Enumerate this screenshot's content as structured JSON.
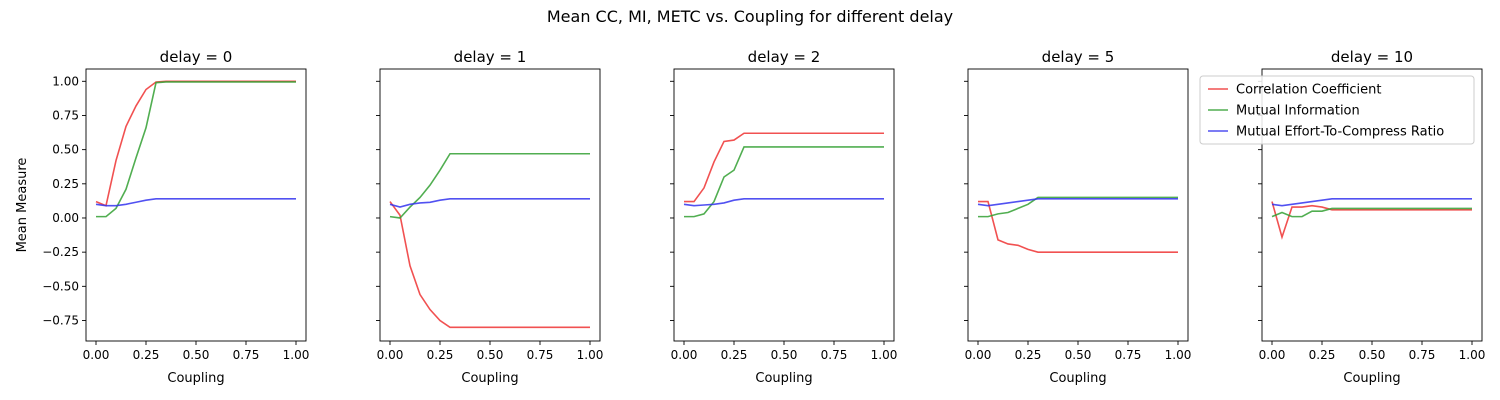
{
  "chart_data": {
    "type": "line",
    "suptitle": "Mean CC, MI, METC vs. Coupling for different delay",
    "xlabel": "Coupling",
    "ylabel": "Mean Measure",
    "xlim": [
      -0.05,
      1.05
    ],
    "ylim": [
      -0.9,
      1.09
    ],
    "xticks": [
      0.0,
      0.25,
      0.5,
      0.75,
      1.0
    ],
    "xtick_labels": [
      "0.00",
      "0.25",
      "0.50",
      "0.75",
      "1.00"
    ],
    "yticks": [
      -0.75,
      -0.5,
      -0.25,
      0.0,
      0.25,
      0.5,
      0.75,
      1.0
    ],
    "ytick_labels": [
      "−0.75",
      "−0.50",
      "−0.25",
      "0.00",
      "0.25",
      "0.50",
      "0.75",
      "1.00"
    ],
    "grid": false,
    "legend_placement": "upper-right of last panel, overlapping",
    "x": [
      0.0,
      0.05,
      0.1,
      0.15,
      0.2,
      0.25,
      0.3,
      0.35,
      0.4,
      0.45,
      0.5,
      0.55,
      0.6,
      0.65,
      0.7,
      0.75,
      0.8,
      0.85,
      0.9,
      0.95,
      1.0
    ],
    "series_styles": [
      {
        "name": "Correlation Coefficient",
        "color": "#ee3333"
      },
      {
        "name": "Mutual Information",
        "color": "#33a033"
      },
      {
        "name": "Mutual Effort-To-Compress Ratio",
        "color": "#3333ee"
      }
    ],
    "panels": [
      {
        "title": "delay = 0",
        "series": [
          {
            "name": "Correlation Coefficient",
            "values": [
              0.12,
              0.09,
              0.42,
              0.67,
              0.82,
              0.94,
              0.995,
              1.0,
              1.0,
              1.0,
              1.0,
              1.0,
              1.0,
              1.0,
              1.0,
              1.0,
              1.0,
              1.0,
              1.0,
              1.0,
              1.0
            ]
          },
          {
            "name": "Mutual Information",
            "values": [
              0.01,
              0.01,
              0.07,
              0.21,
              0.44,
              0.66,
              0.99,
              0.995,
              0.995,
              0.995,
              0.995,
              0.995,
              0.995,
              0.995,
              0.995,
              0.995,
              0.995,
              0.995,
              0.995,
              0.995,
              0.995
            ]
          },
          {
            "name": "Mutual Effort-To-Compress Ratio",
            "values": [
              0.1,
              0.09,
              0.09,
              0.1,
              0.115,
              0.13,
              0.14,
              0.14,
              0.14,
              0.14,
              0.14,
              0.14,
              0.14,
              0.14,
              0.14,
              0.14,
              0.14,
              0.14,
              0.14,
              0.14,
              0.14
            ]
          }
        ]
      },
      {
        "title": "delay = 1",
        "series": [
          {
            "name": "Correlation Coefficient",
            "values": [
              0.12,
              0.02,
              -0.35,
              -0.56,
              -0.67,
              -0.75,
              -0.8,
              -0.8,
              -0.8,
              -0.8,
              -0.8,
              -0.8,
              -0.8,
              -0.8,
              -0.8,
              -0.8,
              -0.8,
              -0.8,
              -0.8,
              -0.8,
              -0.8
            ]
          },
          {
            "name": "Mutual Information",
            "values": [
              0.01,
              0.0,
              0.08,
              0.15,
              0.24,
              0.35,
              0.47,
              0.47,
              0.47,
              0.47,
              0.47,
              0.47,
              0.47,
              0.47,
              0.47,
              0.47,
              0.47,
              0.47,
              0.47,
              0.47,
              0.47
            ]
          },
          {
            "name": "Mutual Effort-To-Compress Ratio",
            "values": [
              0.1,
              0.08,
              0.1,
              0.11,
              0.115,
              0.13,
              0.14,
              0.14,
              0.14,
              0.14,
              0.14,
              0.14,
              0.14,
              0.14,
              0.14,
              0.14,
              0.14,
              0.14,
              0.14,
              0.14,
              0.14
            ]
          }
        ]
      },
      {
        "title": "delay = 2",
        "series": [
          {
            "name": "Correlation Coefficient",
            "values": [
              0.12,
              0.12,
              0.22,
              0.41,
              0.56,
              0.57,
              0.62,
              0.62,
              0.62,
              0.62,
              0.62,
              0.62,
              0.62,
              0.62,
              0.62,
              0.62,
              0.62,
              0.62,
              0.62,
              0.62,
              0.62
            ]
          },
          {
            "name": "Mutual Information",
            "values": [
              0.01,
              0.01,
              0.03,
              0.12,
              0.3,
              0.35,
              0.52,
              0.52,
              0.52,
              0.52,
              0.52,
              0.52,
              0.52,
              0.52,
              0.52,
              0.52,
              0.52,
              0.52,
              0.52,
              0.52,
              0.52
            ]
          },
          {
            "name": "Mutual Effort-To-Compress Ratio",
            "values": [
              0.1,
              0.09,
              0.095,
              0.1,
              0.11,
              0.13,
              0.14,
              0.14,
              0.14,
              0.14,
              0.14,
              0.14,
              0.14,
              0.14,
              0.14,
              0.14,
              0.14,
              0.14,
              0.14,
              0.14,
              0.14
            ]
          }
        ]
      },
      {
        "title": "delay = 5",
        "series": [
          {
            "name": "Correlation Coefficient",
            "values": [
              0.12,
              0.12,
              -0.16,
              -0.19,
              -0.2,
              -0.23,
              -0.25,
              -0.25,
              -0.25,
              -0.25,
              -0.25,
              -0.25,
              -0.25,
              -0.25,
              -0.25,
              -0.25,
              -0.25,
              -0.25,
              -0.25,
              -0.25,
              -0.25
            ]
          },
          {
            "name": "Mutual Information",
            "values": [
              0.01,
              0.01,
              0.03,
              0.04,
              0.07,
              0.1,
              0.15,
              0.15,
              0.15,
              0.15,
              0.15,
              0.15,
              0.15,
              0.15,
              0.15,
              0.15,
              0.15,
              0.15,
              0.15,
              0.15,
              0.15
            ]
          },
          {
            "name": "Mutual Effort-To-Compress Ratio",
            "values": [
              0.1,
              0.09,
              0.1,
              0.11,
              0.12,
              0.13,
              0.14,
              0.14,
              0.14,
              0.14,
              0.14,
              0.14,
              0.14,
              0.14,
              0.14,
              0.14,
              0.14,
              0.14,
              0.14,
              0.14,
              0.14
            ]
          }
        ]
      },
      {
        "title": "delay = 10",
        "series": [
          {
            "name": "Correlation Coefficient",
            "values": [
              0.12,
              -0.14,
              0.08,
              0.08,
              0.09,
              0.08,
              0.06,
              0.06,
              0.06,
              0.06,
              0.06,
              0.06,
              0.06,
              0.06,
              0.06,
              0.06,
              0.06,
              0.06,
              0.06,
              0.06,
              0.06
            ]
          },
          {
            "name": "Mutual Information",
            "values": [
              0.01,
              0.04,
              0.01,
              0.01,
              0.05,
              0.05,
              0.07,
              0.07,
              0.07,
              0.07,
              0.07,
              0.07,
              0.07,
              0.07,
              0.07,
              0.07,
              0.07,
              0.07,
              0.07,
              0.07,
              0.07
            ]
          },
          {
            "name": "Mutual Effort-To-Compress Ratio",
            "values": [
              0.1,
              0.09,
              0.1,
              0.11,
              0.12,
              0.13,
              0.14,
              0.14,
              0.14,
              0.14,
              0.14,
              0.14,
              0.14,
              0.14,
              0.14,
              0.14,
              0.14,
              0.14,
              0.14,
              0.14,
              0.14
            ]
          }
        ]
      }
    ],
    "legend": {
      "entries": [
        "Correlation Coefficient",
        "Mutual Information",
        "Mutual Effort-To-Compress Ratio"
      ]
    }
  }
}
